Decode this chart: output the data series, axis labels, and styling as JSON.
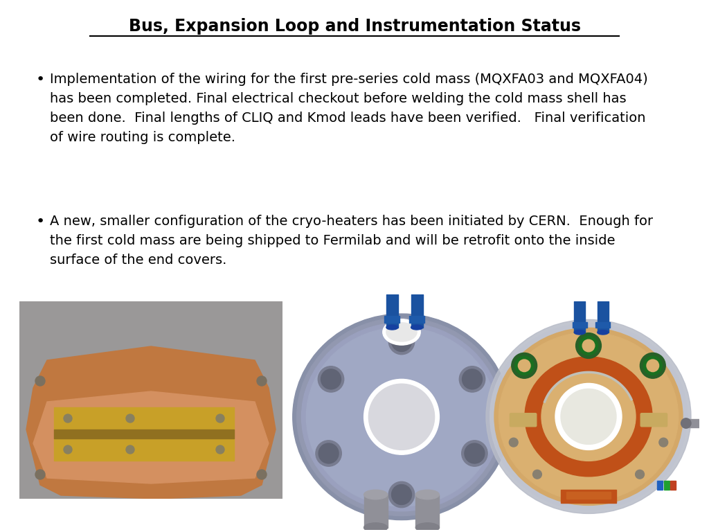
{
  "title": "Bus, Expansion Loop and Instrumentation Status",
  "background_color": "#ffffff",
  "title_fontsize": 17,
  "title_fontweight": "bold",
  "bullet1_line1": "Implementation of the wiring for the first pre-series cold mass (MQXFA03 and MQXFA04)",
  "bullet1_line2": "has been completed. Final electrical checkout before welding the cold mass shell has",
  "bullet1_line3": "been done.  Final lengths of CLIQ and Kmod leads have been verified.   Final verification",
  "bullet1_line4": "of wire routing is complete.",
  "bullet2_line1": "A new, smaller configuration of the cryo-heaters has been initiated by CERN.  Enough for",
  "bullet2_line2": "the first cold mass are being shipped to Fermilab and will be retrofit onto the inside",
  "bullet2_line3": "surface of the end covers.",
  "text_fontsize": 14,
  "text_color": "#000000",
  "figsize": [
    10.24,
    7.68
  ],
  "dpi": 100
}
